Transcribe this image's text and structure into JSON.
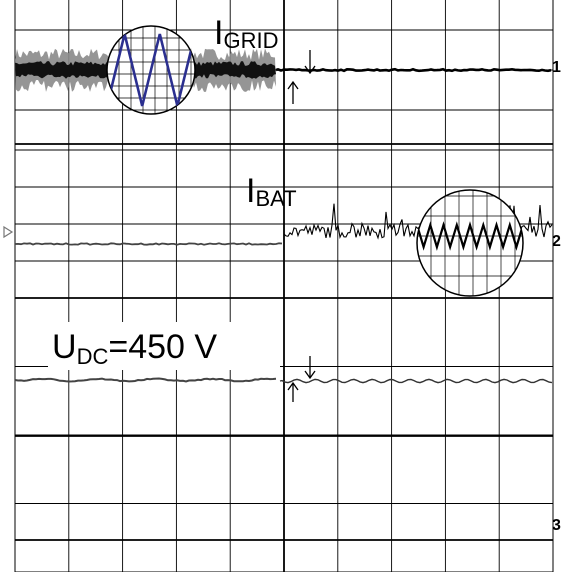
{
  "chart_data": {
    "type": "line",
    "title": "",
    "grid": true,
    "panels": [
      {
        "channel": "1",
        "label_main": "I",
        "label_sub": "GRID",
        "traces": [
          {
            "name": "",
            "style": "noisy-band-then-flat",
            "color": "#000000",
            "band_color": "#8a8a8a"
          }
        ],
        "inset": {
          "type": "triangle-wave",
          "color": "#2b2f8f",
          "cycles": 2.5
        }
      },
      {
        "channel": "2",
        "label_main": "I",
        "label_sub": "BAT",
        "traces": [
          {
            "name": "",
            "style": "flat-then-spiky",
            "color": "#000000"
          }
        ],
        "inset": {
          "type": "sawtooth",
          "color": "#000000",
          "cycles": 8
        }
      },
      {
        "channel": "3",
        "label_main": "U",
        "label_sub": "DC",
        "label_tail": "=450 V",
        "traces": [
          {
            "name": "",
            "style": "flat-with-step",
            "color": "#333333"
          }
        ]
      }
    ],
    "trigger_divisions": 5,
    "grid_divisions_x": 10,
    "grid_divisions_y": 4
  }
}
